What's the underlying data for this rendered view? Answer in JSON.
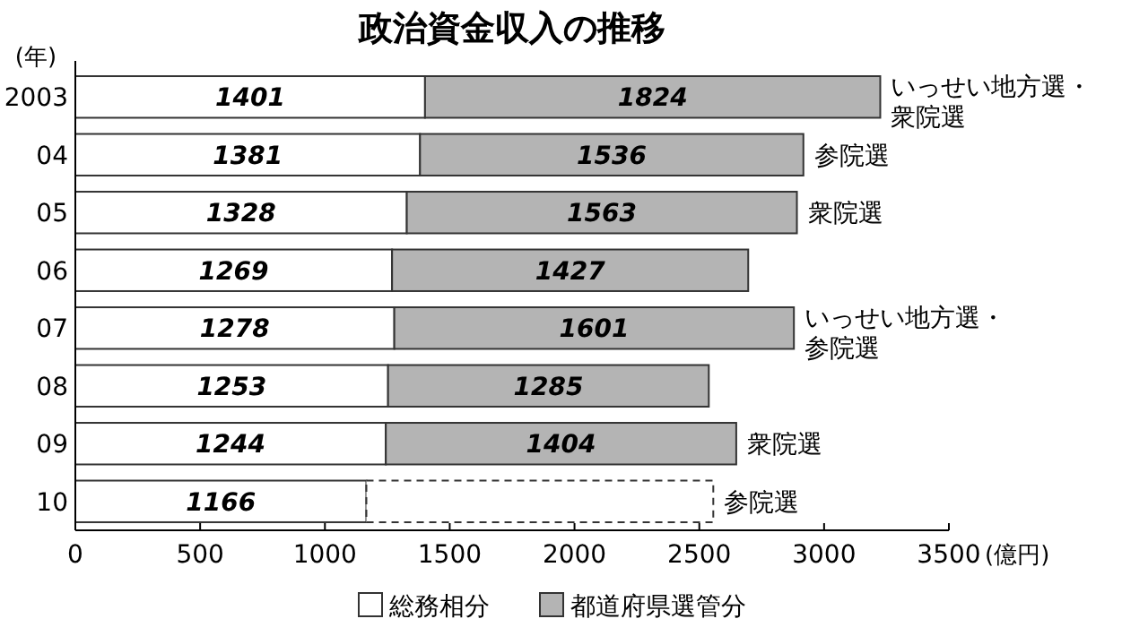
{
  "chart_data": {
    "type": "bar",
    "orientation": "horizontal",
    "stacked": true,
    "title": "政治資金収入の推移",
    "ylabel": "(年)",
    "xlabel": "(億円)",
    "categories": [
      "2003",
      "04",
      "05",
      "06",
      "07",
      "08",
      "09",
      "10"
    ],
    "series": [
      {
        "name": "総務相分",
        "color": "#ffffff",
        "values": [
          1401,
          1381,
          1328,
          1269,
          1278,
          1253,
          1244,
          1166
        ],
        "value_labels": [
          "1401",
          "1381",
          "1328",
          "1269",
          "1278",
          "1253",
          "1244",
          "1166"
        ]
      },
      {
        "name": "都道府県選管分",
        "color": "#b4b4b4",
        "values": [
          1824,
          1536,
          1563,
          1427,
          1601,
          1285,
          1404,
          null
        ],
        "value_labels": [
          "1824",
          "1536",
          "1563",
          "1427",
          "1601",
          "1285",
          "1404",
          null
        ]
      },
      {
        "color": "#ffffff",
        "line_style": "dashed",
        "values": [
          null,
          null,
          null,
          null,
          null,
          null,
          null,
          1390
        ]
      }
    ],
    "xlim": [
      0,
      3500
    ],
    "xticks": [
      0,
      500,
      1000,
      1500,
      2000,
      2500,
      3000,
      3500
    ],
    "grid": false,
    "legend": "bottom",
    "annotations": [
      {
        "text": "いっせい地方選・衆院選",
        "x": 3225,
        "y": "2003"
      },
      {
        "text": "参院選",
        "x": 2917,
        "y": "04"
      },
      {
        "text": "衆院選",
        "x": 2891,
        "y": "05"
      },
      {
        "text": "いっせい地方選・参院選",
        "x": 2879,
        "y": "07"
      },
      {
        "text": "衆院選",
        "x": 2648,
        "y": "09"
      },
      {
        "text": "参院選",
        "x": 2556,
        "y": "10"
      }
    ]
  }
}
